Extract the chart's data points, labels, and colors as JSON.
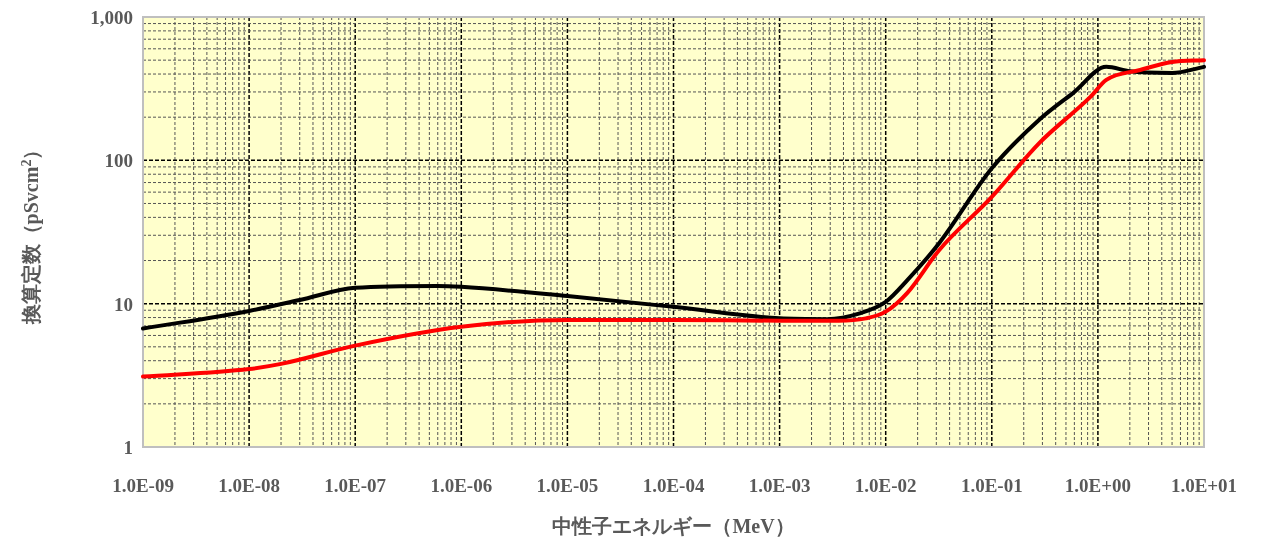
{
  "chart_data": {
    "type": "line",
    "xlabel": "中性子エネルギー（MeV）",
    "ylabel": "換算定数（pSvcm$^{2}$）",
    "log": "xy",
    "grid": true,
    "xlim": [
      1e-09,
      10
    ],
    "ylim": [
      1,
      1000
    ],
    "xticks": [
      {
        "value": 1e-09,
        "label": "1.0E-09"
      },
      {
        "value": 1e-08,
        "label": "1.0E-08"
      },
      {
        "value": 1e-07,
        "label": "1.0E-07"
      },
      {
        "value": 1e-06,
        "label": "1.0E-06"
      },
      {
        "value": 1e-05,
        "label": "1.0E-05"
      },
      {
        "value": 0.0001,
        "label": "1.0E-04"
      },
      {
        "value": 0.001,
        "label": "1.0E-03"
      },
      {
        "value": 0.01,
        "label": "1.0E-02"
      },
      {
        "value": 0.1,
        "label": "1.0E-01"
      },
      {
        "value": 1,
        "label": "1.0E+00"
      },
      {
        "value": 10,
        "label": "1.0E+01"
      }
    ],
    "yticks": [
      1,
      10,
      100,
      {
        "value": 1000,
        "label": "1,000"
      }
    ],
    "series": [
      {
        "color": "#000000",
        "x": [
          1e-09,
          1e-08,
          3e-08,
          1e-07,
          6e-07,
          1e-06,
          1e-05,
          0.0001,
          0.001,
          0.0028,
          0.0058,
          0.01,
          0.016,
          0.032,
          0.1,
          0.28,
          0.59,
          1.2,
          2,
          5,
          10
        ],
        "values": [
          6.7,
          8.9,
          10.6,
          12.9,
          13.3,
          13.1,
          11.3,
          9.5,
          7.9,
          7.8,
          8.6,
          10.3,
          14.6,
          26.5,
          88,
          192,
          297,
          449,
          418,
          407,
          449
        ]
      },
      {
        "color": "#ff0000",
        "x": [
          1e-09,
          1e-08,
          2e-08,
          1e-07,
          1e-06,
          1e-05,
          0.0001,
          0.001,
          0.0036,
          0.0065,
          0.01,
          0.016,
          0.032,
          0.1,
          0.28,
          0.85,
          1.2,
          2.5,
          5,
          10
        ],
        "values": [
          3.1,
          3.5,
          3.8,
          5.1,
          6.9,
          7.7,
          7.7,
          7.6,
          7.6,
          7.9,
          8.8,
          11.9,
          23.7,
          55.6,
          132,
          277,
          364,
          427,
          486,
          500
        ]
      }
    ]
  }
}
